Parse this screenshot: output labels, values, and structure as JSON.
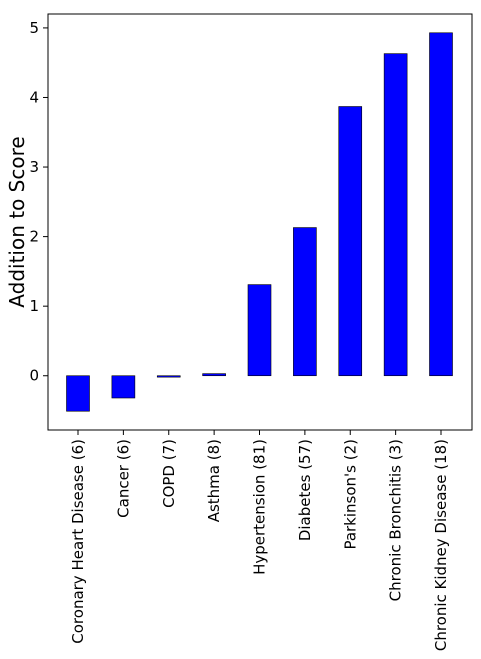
{
  "chart_data": {
    "type": "bar",
    "title": "",
    "xlabel": "",
    "ylabel": "Addition to Score",
    "categories": [
      "Coronary Heart Disease (6)",
      "Cancer (6)",
      "COPD (7)",
      "Asthma (8)",
      "Hypertension (81)",
      "Diabetes (57)",
      "Parkinson's (2)",
      "Chronic Bronchitis (3)",
      "Chronic Kidney Disease (18)"
    ],
    "values": [
      -0.51,
      -0.32,
      -0.02,
      0.03,
      1.31,
      2.13,
      3.87,
      4.63,
      4.93
    ],
    "ylim": [
      -0.78,
      5.2
    ],
    "yticks": [
      0,
      1,
      2,
      3,
      4,
      5
    ],
    "grid": false,
    "bar_color": "#0000ff",
    "bar_edge_color": "#000000"
  }
}
